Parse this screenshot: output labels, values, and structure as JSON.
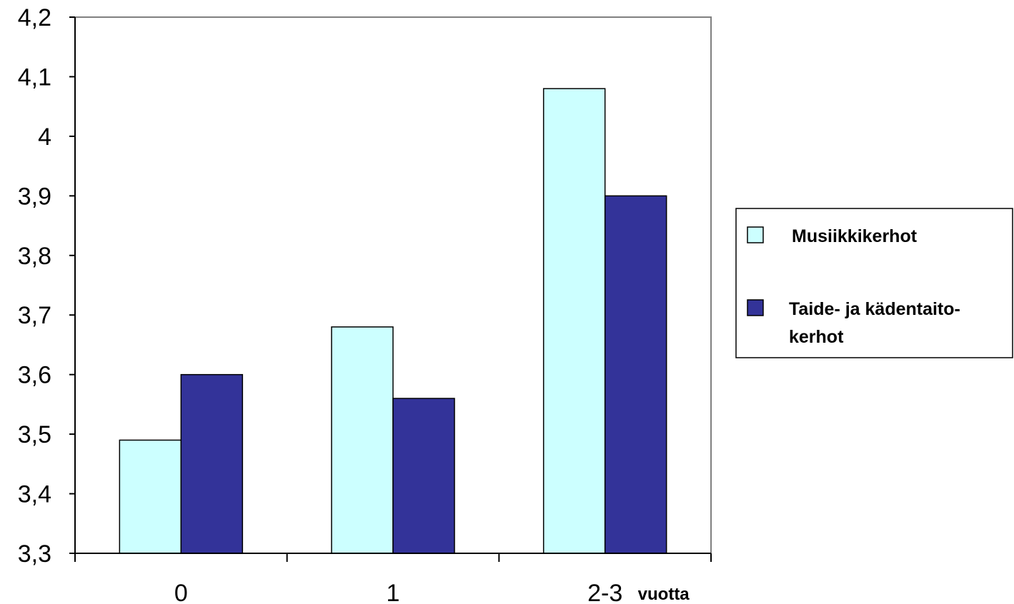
{
  "chart_data": {
    "type": "bar",
    "categories": [
      "0",
      "1",
      "2-3"
    ],
    "x_suffix": "vuotta",
    "series": [
      {
        "name": "Musiikkikerhot",
        "values": [
          3.49,
          3.68,
          4.08
        ],
        "color": "#ccffff"
      },
      {
        "name": "Taide- ja kädentaito-kerhot",
        "values": [
          3.6,
          3.56,
          3.9
        ],
        "color": "#333399"
      }
    ],
    "legend_lines": [
      [
        "Musiikkikerhot"
      ],
      [
        "Taide- ja kädentaito-",
        "kerhot"
      ]
    ],
    "y_ticks": [
      "3,3",
      "3,4",
      "3,5",
      "3,6",
      "3,7",
      "3,8",
      "3,9",
      "4",
      "4,1",
      "4,2"
    ],
    "ylim": [
      3.3,
      4.2
    ],
    "grid": false,
    "legend_position": "right",
    "title": "",
    "xlabel": "",
    "ylabel": ""
  }
}
